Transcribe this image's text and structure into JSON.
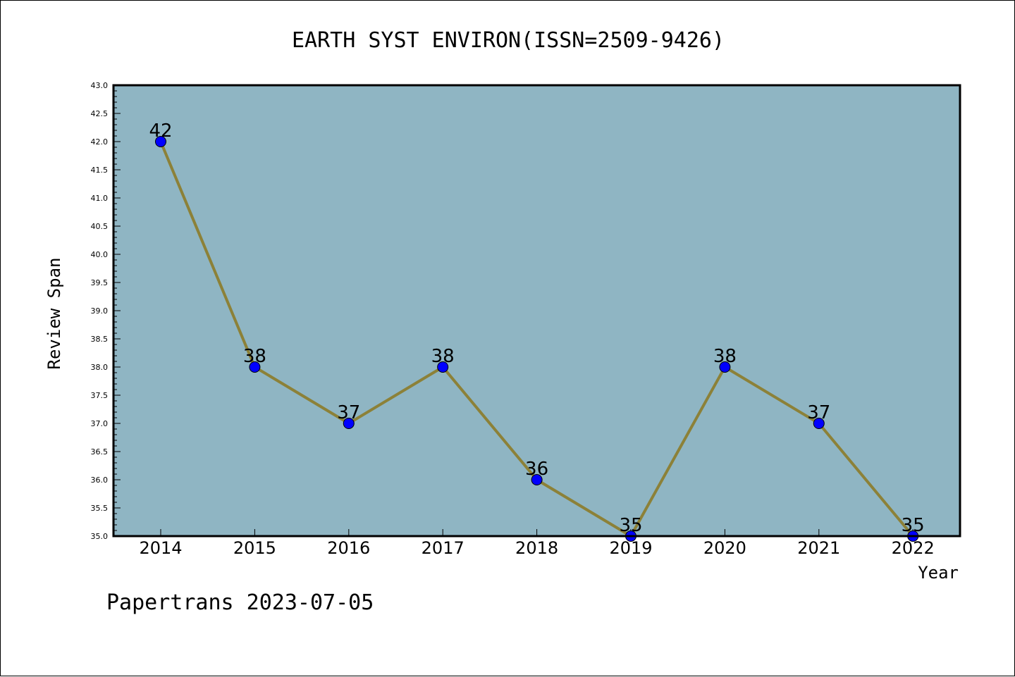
{
  "chart_data": {
    "type": "line",
    "title": "EARTH SYST ENVIRON(ISSN=2509-9426)",
    "xlabel": "Year",
    "ylabel": "Review Span",
    "categories": [
      "2014",
      "2015",
      "2016",
      "2017",
      "2018",
      "2019",
      "2020",
      "2021",
      "2022"
    ],
    "values": [
      42,
      38,
      37,
      38,
      36,
      35,
      38,
      37,
      35
    ],
    "data_labels": [
      "42",
      "38",
      "37",
      "38",
      "36",
      "35",
      "38",
      "37",
      "35"
    ],
    "ylim": [
      35.0,
      43.0
    ],
    "y_major_step": 0.5,
    "y_minor_step": 0.1,
    "yticks": [
      "35.0",
      "35.5",
      "36.0",
      "36.5",
      "37.0",
      "37.5",
      "38.0",
      "38.5",
      "39.0",
      "39.5",
      "40.0",
      "40.5",
      "41.0",
      "41.5",
      "42.0",
      "42.5",
      "43.0"
    ],
    "grid": false,
    "legend": "none",
    "colors": {
      "plot_background": "#8fb5c3",
      "line": "#8c8138",
      "marker": "#0000ff"
    }
  },
  "footer": {
    "text": "Papertrans 2023-07-05"
  }
}
